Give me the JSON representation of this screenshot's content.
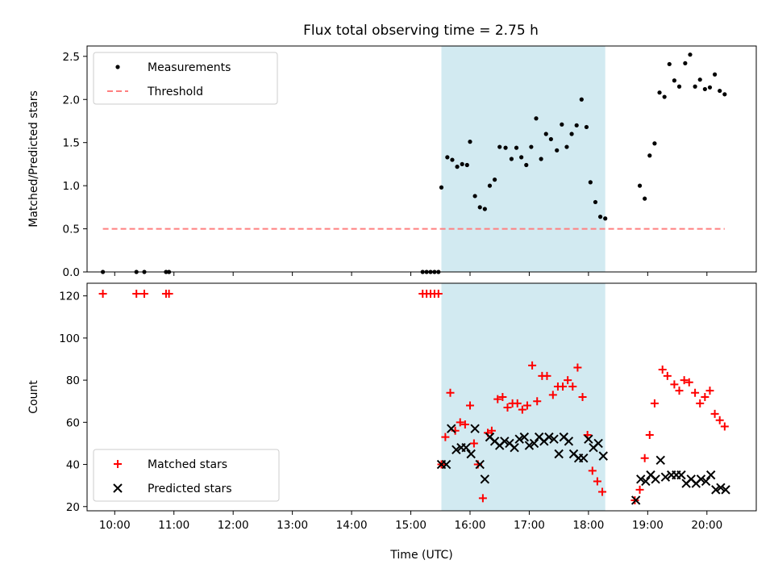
{
  "chart_data": [
    {
      "type": "scatter",
      "panel": "top",
      "title": "Flux total observing time = 2.75 h",
      "xlabel": "",
      "ylabel": "Matched/Predicted stars",
      "ylim": [
        0,
        2.62
      ],
      "xlim": [
        "09:32",
        "20:50"
      ],
      "yticks": [
        "0.0",
        "0.5",
        "1.0",
        "1.5",
        "2.0",
        "2.5"
      ],
      "highlight_span": {
        "x0": "15:31",
        "x1": "18:17",
        "color": "#add8e6"
      },
      "legend_position": "top-left",
      "series": [
        {
          "name": "Measurements",
          "marker": "dot",
          "color": "#000000",
          "points": [
            [
              "09:48",
              0
            ],
            [
              "10:22",
              0
            ],
            [
              "10:30",
              0
            ],
            [
              "10:52",
              0
            ],
            [
              "10:55",
              0
            ],
            [
              "15:12",
              0
            ],
            [
              "15:16",
              0
            ],
            [
              "15:20",
              0
            ],
            [
              "15:24",
              0
            ],
            [
              "15:28",
              0
            ],
            [
              "15:31",
              0.98
            ],
            [
              "15:37",
              1.33
            ],
            [
              "15:42",
              1.3
            ],
            [
              "15:47",
              1.22
            ],
            [
              "15:52",
              1.25
            ],
            [
              "15:57",
              1.24
            ],
            [
              "16:00",
              1.51
            ],
            [
              "16:05",
              0.88
            ],
            [
              "16:10",
              0.75
            ],
            [
              "16:15",
              0.73
            ],
            [
              "16:20",
              1.0
            ],
            [
              "16:25",
              1.07
            ],
            [
              "16:30",
              1.45
            ],
            [
              "16:36",
              1.44
            ],
            [
              "16:42",
              1.31
            ],
            [
              "16:47",
              1.44
            ],
            [
              "16:52",
              1.33
            ],
            [
              "16:57",
              1.24
            ],
            [
              "17:02",
              1.45
            ],
            [
              "17:07",
              1.78
            ],
            [
              "17:12",
              1.31
            ],
            [
              "17:17",
              1.6
            ],
            [
              "17:22",
              1.54
            ],
            [
              "17:28",
              1.41
            ],
            [
              "17:33",
              1.71
            ],
            [
              "17:38",
              1.45
            ],
            [
              "17:43",
              1.6
            ],
            [
              "17:48",
              1.7
            ],
            [
              "17:53",
              2.0
            ],
            [
              "17:58",
              1.68
            ],
            [
              "18:02",
              1.04
            ],
            [
              "18:07",
              0.81
            ],
            [
              "18:12",
              0.64
            ],
            [
              "18:17",
              0.62
            ],
            [
              "18:52",
              1.0
            ],
            [
              "18:57",
              0.85
            ],
            [
              "19:02",
              1.35
            ],
            [
              "19:07",
              1.49
            ],
            [
              "19:12",
              2.08
            ],
            [
              "19:17",
              2.03
            ],
            [
              "19:22",
              2.41
            ],
            [
              "19:27",
              2.22
            ],
            [
              "19:32",
              2.15
            ],
            [
              "19:38",
              2.42
            ],
            [
              "19:43",
              2.52
            ],
            [
              "19:48",
              2.15
            ],
            [
              "19:53",
              2.23
            ],
            [
              "19:58",
              2.12
            ],
            [
              "20:03",
              2.14
            ],
            [
              "20:08",
              2.29
            ],
            [
              "20:13",
              2.1
            ],
            [
              "20:18",
              2.06
            ]
          ]
        },
        {
          "name": "Threshold",
          "style": "dashed-line",
          "color": "#ff7f7f",
          "points": [
            [
              "09:48",
              0.5
            ],
            [
              "20:18",
              0.5
            ]
          ]
        }
      ]
    },
    {
      "type": "scatter",
      "panel": "bottom",
      "title": "",
      "xlabel": "Time (UTC)",
      "ylabel": "Count",
      "ylim": [
        18,
        126
      ],
      "xlim": [
        "09:32",
        "20:50"
      ],
      "yticks": [
        "20",
        "40",
        "60",
        "80",
        "100",
        "120"
      ],
      "xticks": [
        "10:00",
        "11:00",
        "12:00",
        "13:00",
        "14:00",
        "15:00",
        "16:00",
        "17:00",
        "18:00",
        "19:00",
        "20:00"
      ],
      "highlight_span": {
        "x0": "15:31",
        "x1": "18:17",
        "color": "#add8e6"
      },
      "legend_position": "bottom-left",
      "series": [
        {
          "name": "Matched stars",
          "marker": "plus",
          "color": "#ff0000",
          "points": [
            [
              "09:48",
              121
            ],
            [
              "10:22",
              121
            ],
            [
              "10:30",
              121
            ],
            [
              "10:52",
              121
            ],
            [
              "10:55",
              121
            ],
            [
              "15:12",
              121
            ],
            [
              "15:16",
              121
            ],
            [
              "15:20",
              121
            ],
            [
              "15:24",
              121
            ],
            [
              "15:28",
              121
            ],
            [
              "15:31",
              40
            ],
            [
              "15:35",
              53
            ],
            [
              "15:40",
              74
            ],
            [
              "15:45",
              56
            ],
            [
              "15:50",
              60
            ],
            [
              "15:55",
              59
            ],
            [
              "16:00",
              68
            ],
            [
              "16:04",
              50
            ],
            [
              "16:08",
              40
            ],
            [
              "16:13",
              24
            ],
            [
              "16:18",
              55
            ],
            [
              "16:22",
              56
            ],
            [
              "16:28",
              71
            ],
            [
              "16:33",
              72
            ],
            [
              "16:38",
              67
            ],
            [
              "16:43",
              69
            ],
            [
              "16:48",
              69
            ],
            [
              "16:53",
              66
            ],
            [
              "16:58",
              68
            ],
            [
              "17:03",
              87
            ],
            [
              "17:08",
              70
            ],
            [
              "17:13",
              82
            ],
            [
              "17:18",
              82
            ],
            [
              "17:24",
              73
            ],
            [
              "17:29",
              77
            ],
            [
              "17:34",
              77
            ],
            [
              "17:39",
              80
            ],
            [
              "17:44",
              77
            ],
            [
              "17:49",
              86
            ],
            [
              "17:54",
              72
            ],
            [
              "17:59",
              54
            ],
            [
              "18:04",
              37
            ],
            [
              "18:09",
              32
            ],
            [
              "18:14",
              27
            ],
            [
              "18:47",
              23
            ],
            [
              "18:52",
              28
            ],
            [
              "18:57",
              43
            ],
            [
              "19:02",
              54
            ],
            [
              "19:07",
              69
            ],
            [
              "19:15",
              85
            ],
            [
              "19:20",
              82
            ],
            [
              "19:27",
              78
            ],
            [
              "19:32",
              75
            ],
            [
              "19:37",
              80
            ],
            [
              "19:42",
              79
            ],
            [
              "19:48",
              74
            ],
            [
              "19:53",
              69
            ],
            [
              "19:58",
              72
            ],
            [
              "20:03",
              75
            ],
            [
              "20:08",
              64
            ],
            [
              "20:13",
              61
            ],
            [
              "20:18",
              58
            ]
          ]
        },
        {
          "name": "Predicted stars",
          "marker": "x",
          "color": "#000000",
          "points": [
            [
              "15:31",
              40
            ],
            [
              "15:36",
              40
            ],
            [
              "15:41",
              57
            ],
            [
              "15:46",
              47
            ],
            [
              "15:51",
              48
            ],
            [
              "15:56",
              48
            ],
            [
              "16:01",
              45
            ],
            [
              "16:05",
              57
            ],
            [
              "16:10",
              40
            ],
            [
              "16:15",
              33
            ],
            [
              "16:20",
              53
            ],
            [
              "16:25",
              51
            ],
            [
              "16:30",
              49
            ],
            [
              "16:35",
              51
            ],
            [
              "16:40",
              50
            ],
            [
              "16:45",
              48
            ],
            [
              "16:50",
              52
            ],
            [
              "16:55",
              53
            ],
            [
              "17:00",
              49
            ],
            [
              "17:05",
              50
            ],
            [
              "17:10",
              53
            ],
            [
              "17:15",
              51
            ],
            [
              "17:20",
              53
            ],
            [
              "17:25",
              52
            ],
            [
              "17:30",
              45
            ],
            [
              "17:35",
              53
            ],
            [
              "17:40",
              51
            ],
            [
              "17:45",
              45
            ],
            [
              "17:50",
              43
            ],
            [
              "17:55",
              43
            ],
            [
              "18:00",
              52
            ],
            [
              "18:05",
              48
            ],
            [
              "18:10",
              50
            ],
            [
              "18:15",
              44
            ],
            [
              "18:48",
              23
            ],
            [
              "18:53",
              33
            ],
            [
              "18:58",
              32
            ],
            [
              "19:03",
              35
            ],
            [
              "19:08",
              33
            ],
            [
              "19:13",
              42
            ],
            [
              "19:18",
              34
            ],
            [
              "19:24",
              35
            ],
            [
              "19:29",
              35
            ],
            [
              "19:34",
              35
            ],
            [
              "19:39",
              31
            ],
            [
              "19:44",
              33
            ],
            [
              "19:49",
              31
            ],
            [
              "19:54",
              33
            ],
            [
              "19:59",
              32
            ],
            [
              "20:04",
              35
            ],
            [
              "20:09",
              28
            ],
            [
              "20:14",
              29
            ],
            [
              "20:19",
              28
            ]
          ]
        }
      ]
    }
  ]
}
